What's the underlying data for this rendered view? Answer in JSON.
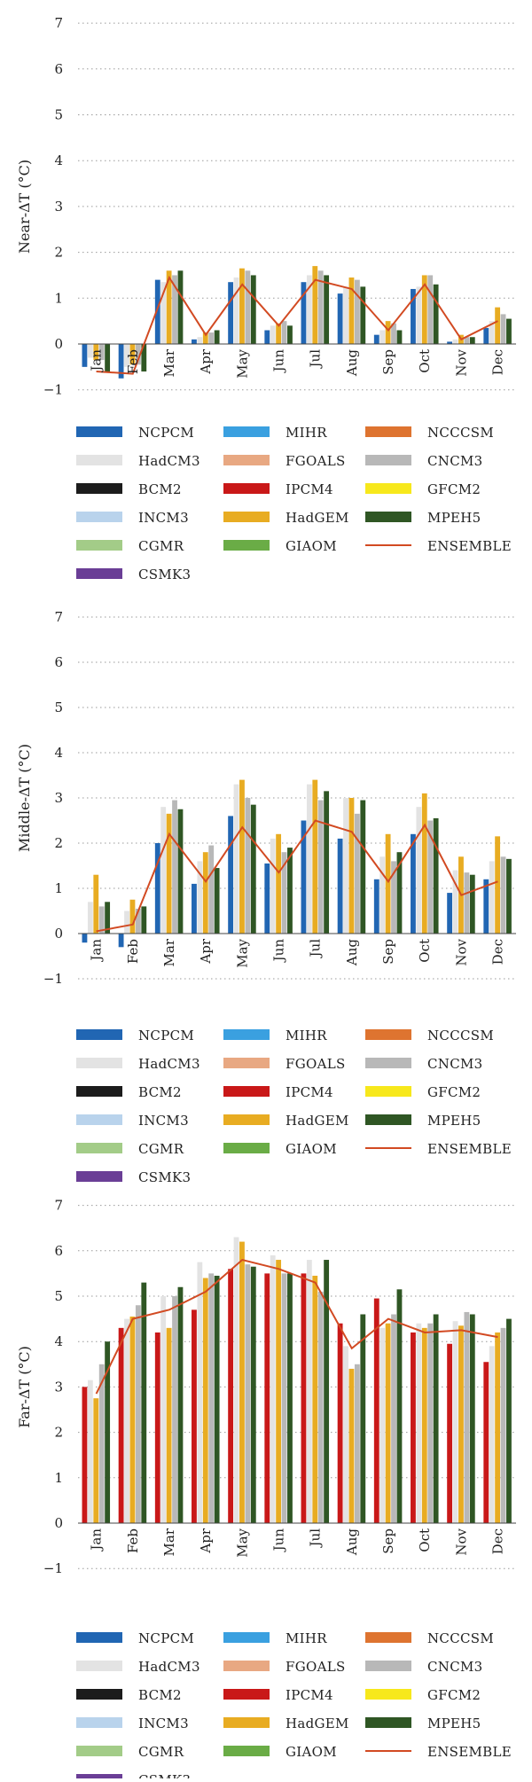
{
  "legend_entries": [
    {
      "name": "NCPCM",
      "color": "#2166b3",
      "kind": "box"
    },
    {
      "name": "MIHR",
      "color": "#3aa0e0",
      "kind": "box"
    },
    {
      "name": "NCCCSM",
      "color": "#de7430",
      "kind": "box"
    },
    {
      "name": "HadCM3",
      "color": "#e3e3e3",
      "kind": "box"
    },
    {
      "name": "FGOALS",
      "color": "#e8a882",
      "kind": "box"
    },
    {
      "name": "CNCM3",
      "color": "#b8b8b8",
      "kind": "box"
    },
    {
      "name": "BCM2",
      "color": "#1c1c1c",
      "kind": "box"
    },
    {
      "name": "IPCM4",
      "color": "#c91818",
      "kind": "box"
    },
    {
      "name": "GFCM2",
      "color": "#f7e81c",
      "kind": "box"
    },
    {
      "name": "INCM3",
      "color": "#b9d3ec",
      "kind": "box"
    },
    {
      "name": "HadGEM",
      "color": "#e8ac22",
      "kind": "box"
    },
    {
      "name": "MPEH5",
      "color": "#2f5624",
      "kind": "box"
    },
    {
      "name": "CGMR",
      "color": "#a3cc88",
      "kind": "box"
    },
    {
      "name": "GIAOM",
      "color": "#6aac46",
      "kind": "box"
    },
    {
      "name": "ENSEMBLE",
      "color": "#d24a22",
      "kind": "line"
    },
    {
      "name": "CSMK3",
      "color": "#6a3e96",
      "kind": "box"
    }
  ],
  "chart_data": [
    {
      "type": "bar",
      "ylabel": "Near-ΔT (°C)",
      "ylim": [
        -1,
        7
      ],
      "yticks": [
        -1,
        0,
        1,
        2,
        3,
        4,
        5,
        6,
        7
      ],
      "grid": true,
      "legend": "bottom",
      "categories": [
        "Jan",
        "Feb",
        "Mar",
        "Apr",
        "May",
        "Jun",
        "Jul",
        "Aug",
        "Sep",
        "Oct",
        "Nov",
        "Dec"
      ],
      "series": [
        {
          "name": "NCPCM",
          "values": [
            -0.5,
            -0.75,
            1.4,
            0.1,
            1.35,
            0.3,
            1.35,
            1.1,
            0.2,
            1.2,
            0.05,
            0.35
          ]
        },
        {
          "name": "HadCM3",
          "values": [
            -0.3,
            -0.5,
            1.35,
            0.15,
            1.45,
            0.4,
            1.5,
            1.25,
            0.3,
            1.25,
            0.1,
            0.5
          ]
        },
        {
          "name": "HadGEM",
          "values": [
            -0.35,
            -0.45,
            1.6,
            0.25,
            1.65,
            0.45,
            1.7,
            1.45,
            0.5,
            1.5,
            0.2,
            0.8
          ]
        },
        {
          "name": "CNCM3",
          "values": [
            -0.35,
            -0.45,
            1.5,
            0.25,
            1.6,
            0.5,
            1.6,
            1.4,
            0.45,
            1.5,
            0.15,
            0.65
          ]
        },
        {
          "name": "MPEH5",
          "values": [
            -0.6,
            -0.6,
            1.6,
            0.3,
            1.5,
            0.4,
            1.5,
            1.25,
            0.3,
            1.3,
            0.15,
            0.55
          ]
        },
        {
          "name": "ENSEMBLE",
          "values": [
            -0.6,
            -0.65,
            1.45,
            0.2,
            1.3,
            0.4,
            1.4,
            1.2,
            0.3,
            1.3,
            0.1,
            0.5
          ]
        }
      ]
    },
    {
      "type": "bar",
      "ylabel": "Middle-ΔT (°C)",
      "ylim": [
        -1,
        7
      ],
      "yticks": [
        -1,
        0,
        1,
        2,
        3,
        4,
        5,
        6,
        7
      ],
      "grid": true,
      "legend": "bottom",
      "categories": [
        "Jan",
        "Feb",
        "Mar",
        "Apr",
        "May",
        "Jun",
        "Jul",
        "Aug",
        "Sep",
        "Oct",
        "Nov",
        "Dec"
      ],
      "series": [
        {
          "name": "NCPCM",
          "values": [
            -0.2,
            -0.3,
            2.0,
            1.1,
            2.6,
            1.55,
            2.5,
            2.1,
            1.2,
            2.2,
            0.9,
            1.2
          ]
        },
        {
          "name": "HadCM3",
          "values": [
            0.7,
            0.5,
            2.8,
            1.6,
            3.3,
            2.1,
            3.3,
            3.0,
            1.7,
            2.8,
            1.4,
            1.6
          ]
        },
        {
          "name": "HadGEM",
          "values": [
            1.3,
            0.75,
            2.65,
            1.8,
            3.4,
            2.2,
            3.4,
            3.0,
            2.2,
            3.1,
            1.7,
            2.15
          ]
        },
        {
          "name": "CNCM3",
          "values": [
            0.6,
            0.55,
            2.95,
            1.95,
            3.0,
            1.8,
            2.95,
            2.65,
            1.6,
            2.5,
            1.35,
            1.7
          ]
        },
        {
          "name": "MPEH5",
          "values": [
            0.7,
            0.6,
            2.75,
            1.45,
            2.85,
            1.9,
            3.15,
            2.95,
            1.8,
            2.55,
            1.3,
            1.65
          ]
        },
        {
          "name": "ENSEMBLE",
          "values": [
            0.05,
            0.2,
            2.2,
            1.15,
            2.35,
            1.35,
            2.5,
            2.25,
            1.15,
            2.4,
            0.85,
            1.15
          ]
        }
      ]
    },
    {
      "type": "bar",
      "ylabel": "Far-ΔT (°C)",
      "ylim": [
        -1,
        7
      ],
      "yticks": [
        -1,
        0,
        1,
        2,
        3,
        4,
        5,
        6,
        7
      ],
      "grid": true,
      "legend": "bottom",
      "categories": [
        "Jan",
        "Feb",
        "Mar",
        "Apr",
        "May",
        "Jun",
        "Jul",
        "Aug",
        "Sep",
        "Oct",
        "Nov",
        "Dec"
      ],
      "series": [
        {
          "name": "IPCM4",
          "values": [
            3.0,
            4.3,
            4.2,
            4.7,
            5.6,
            5.5,
            5.5,
            4.4,
            4.95,
            4.2,
            3.95,
            3.55
          ]
        },
        {
          "name": "HadCM3",
          "values": [
            3.15,
            4.5,
            5.0,
            5.75,
            6.3,
            5.9,
            5.8,
            3.9,
            4.3,
            4.4,
            4.45,
            3.9
          ]
        },
        {
          "name": "HadGEM",
          "values": [
            2.75,
            4.55,
            4.3,
            5.4,
            6.2,
            5.8,
            5.45,
            3.4,
            4.4,
            4.3,
            4.35,
            4.2
          ]
        },
        {
          "name": "CNCM3",
          "values": [
            3.5,
            4.8,
            5.0,
            5.5,
            5.7,
            5.5,
            5.1,
            3.5,
            4.6,
            4.4,
            4.65,
            4.3
          ]
        },
        {
          "name": "MPEH5",
          "values": [
            4.0,
            5.3,
            5.2,
            5.45,
            5.65,
            5.5,
            5.8,
            4.6,
            5.15,
            4.6,
            4.6,
            4.5
          ]
        },
        {
          "name": "ENSEMBLE",
          "values": [
            2.85,
            4.5,
            4.7,
            5.1,
            5.8,
            5.6,
            5.3,
            3.85,
            4.5,
            4.2,
            4.25,
            4.1
          ]
        }
      ]
    }
  ]
}
